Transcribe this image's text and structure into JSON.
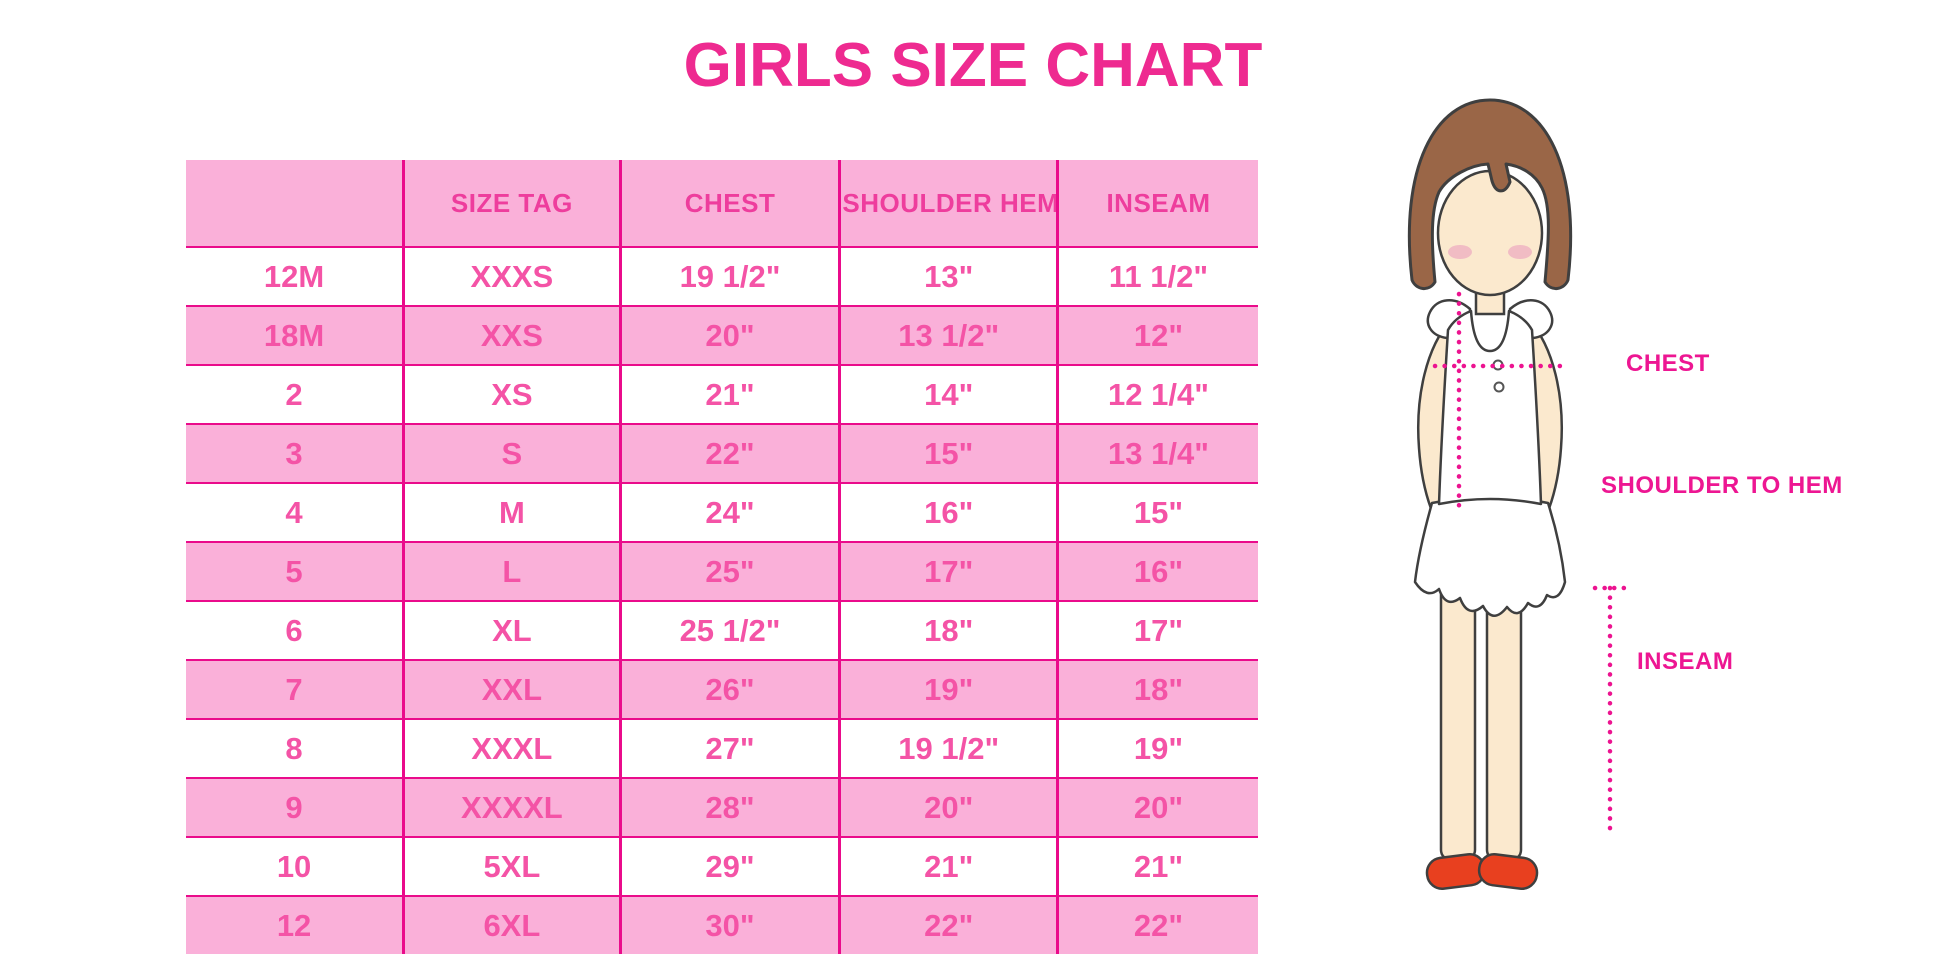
{
  "title": "GIRLS SIZE CHART",
  "colors": {
    "title": "#ee2a90",
    "grid": "#ea0b8b",
    "row_pink": "#fab0d9",
    "header_text": "#ee3d9d",
    "cell_text": "#f453a6",
    "label": "#ed1692",
    "dotted": "#ec1390",
    "hair": "#9a6647",
    "skin": "#fbe9ce",
    "blush": "#efb0c2",
    "shoe": "#e8401f",
    "outline": "#3f3f3f"
  },
  "chart_data": {
    "type": "table",
    "title": "GIRLS SIZE CHART",
    "columns": [
      "",
      "SIZE TAG",
      "CHEST",
      "SHOULDER HEM",
      "INSEAM"
    ],
    "rows": [
      [
        "12M",
        "XXXS",
        "19 1/2\"",
        "13\"",
        "11 1/2\""
      ],
      [
        "18M",
        "XXS",
        "20\"",
        "13 1/2\"",
        "12\""
      ],
      [
        "2",
        "XS",
        "21\"",
        "14\"",
        "12 1/4\""
      ],
      [
        "3",
        "S",
        "22\"",
        "15\"",
        "13 1/4\""
      ],
      [
        "4",
        "M",
        "24\"",
        "16\"",
        "15\""
      ],
      [
        "5",
        "L",
        "25\"",
        "17\"",
        "16\""
      ],
      [
        "6",
        "XL",
        "25 1/2\"",
        "18\"",
        "17\""
      ],
      [
        "7",
        "XXL",
        "26\"",
        "19\"",
        "18\""
      ],
      [
        "8",
        "XXXL",
        "27\"",
        "19 1/2\"",
        "19\""
      ],
      [
        "9",
        "XXXXL",
        "28\"",
        "20\"",
        "20\""
      ],
      [
        "10",
        "5XL",
        "29\"",
        "21\"",
        "21\""
      ],
      [
        "12",
        "6XL",
        "30\"",
        "22\"",
        "22\""
      ]
    ]
  },
  "figure": {
    "labels": {
      "chest": "CHEST",
      "shoulder_to_hem": "SHOULDER TO HEM",
      "inseam": "INSEAM"
    }
  }
}
